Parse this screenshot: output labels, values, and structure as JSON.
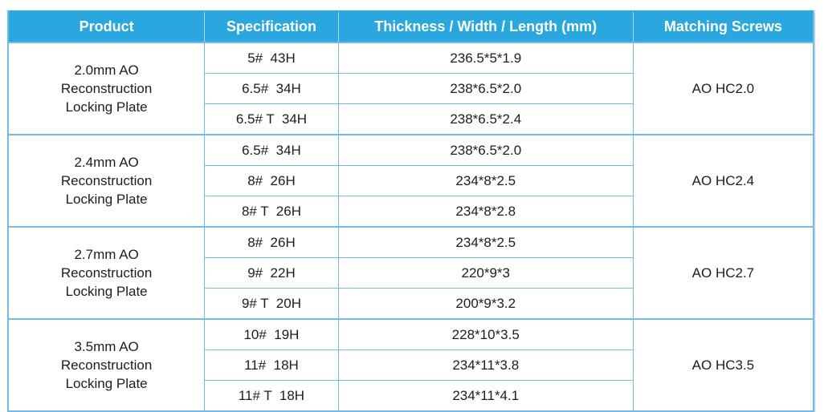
{
  "table": {
    "headers": [
      "Product",
      "Specification",
      "Thickness / Width / Length (mm)",
      "Matching Screws"
    ],
    "colors": {
      "header_bg": "#2BA7E0",
      "header_text": "#FFFFFF",
      "grid_line": "#72BCE9",
      "body_text": "#1D1D1F"
    },
    "groups": [
      {
        "product": "2.0mm AO\nReconstruction\nLocking Plate",
        "screws": "AO HC2.0",
        "rows": [
          {
            "spec": "5#  43H",
            "size": "236.5*5*1.9"
          },
          {
            "spec": "6.5#  34H",
            "size": "238*6.5*2.0"
          },
          {
            "spec": "6.5# T  34H",
            "size": "238*6.5*2.4"
          }
        ]
      },
      {
        "product": "2.4mm AO\nReconstruction\nLocking Plate",
        "screws": "AO HC2.4",
        "rows": [
          {
            "spec": "6.5#  34H",
            "size": "238*6.5*2.0"
          },
          {
            "spec": "8#  26H",
            "size": "234*8*2.5"
          },
          {
            "spec": "8# T  26H",
            "size": "234*8*2.8"
          }
        ]
      },
      {
        "product": "2.7mm AO\nReconstruction\nLocking Plate",
        "screws": "AO HC2.7",
        "rows": [
          {
            "spec": "8#  26H",
            "size": "234*8*2.5"
          },
          {
            "spec": "9#  22H",
            "size": "220*9*3"
          },
          {
            "spec": "9# T  20H",
            "size": "200*9*3.2"
          }
        ]
      },
      {
        "product": "3.5mm AO\nReconstruction\nLocking Plate",
        "screws": "AO HC3.5",
        "rows": [
          {
            "spec": "10#  19H",
            "size": "228*10*3.5"
          },
          {
            "spec": "11#  18H",
            "size": "234*11*3.8"
          },
          {
            "spec": "11# T  18H",
            "size": "234*11*4.1"
          }
        ]
      }
    ]
  }
}
